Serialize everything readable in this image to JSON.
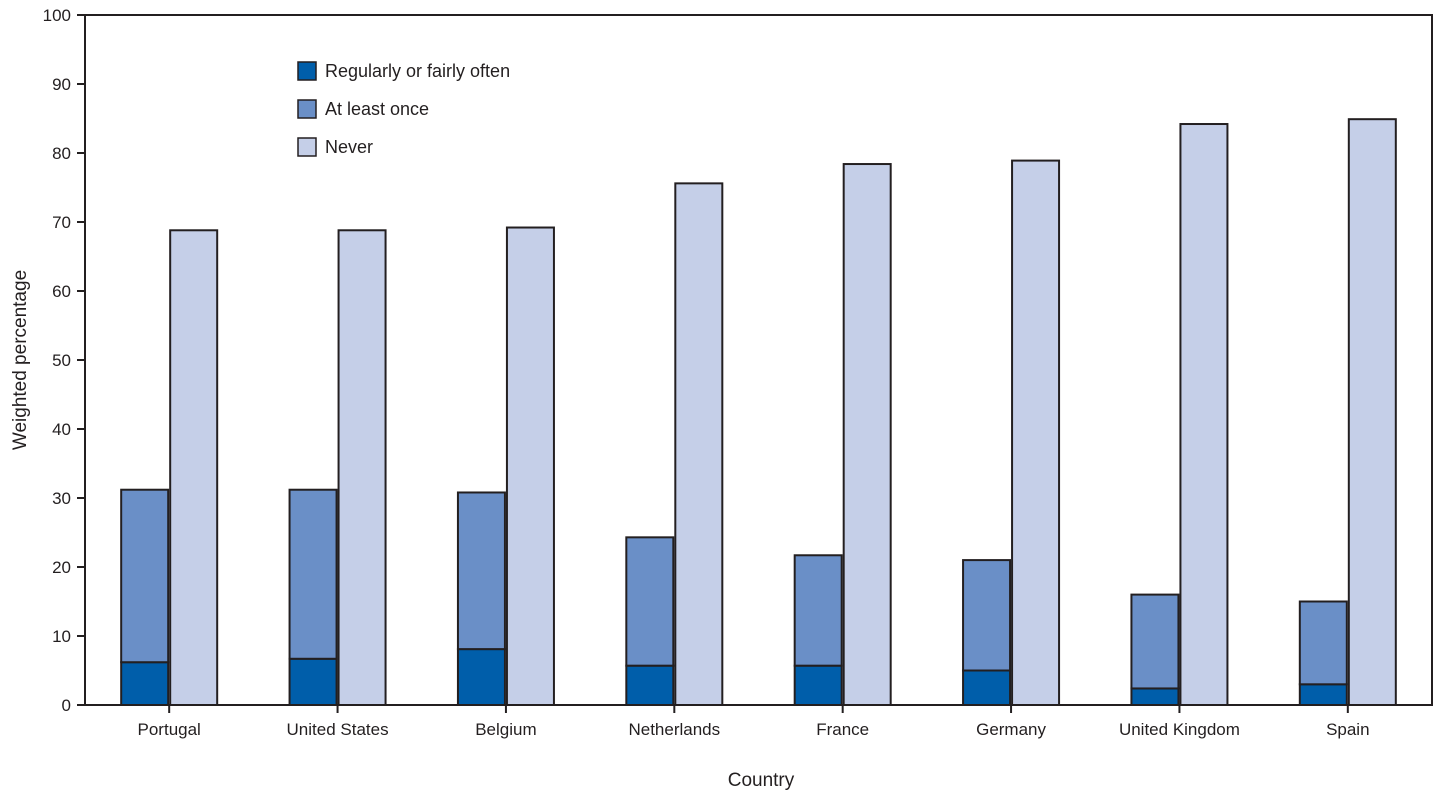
{
  "chart_data": {
    "type": "bar",
    "stacked_groups": true,
    "title": "",
    "xlabel": "Country",
    "ylabel": "Weighted percentage",
    "ylim": [
      0,
      100
    ],
    "yticks": [
      0,
      10,
      20,
      30,
      40,
      50,
      60,
      70,
      80,
      90,
      100
    ],
    "grid": false,
    "legend_position": "top-left",
    "categories": [
      "Portugal",
      "United States",
      "Belgium",
      "Netherlands",
      "France",
      "Germany",
      "United Kingdom",
      "Spain"
    ],
    "series": [
      {
        "name": "Regularly or fairly often",
        "color": "#005eaa",
        "stack": "ever",
        "values": [
          6.2,
          6.7,
          8.1,
          5.7,
          5.7,
          5.0,
          2.4,
          3.0
        ]
      },
      {
        "name": "At least once",
        "color": "#6a8fc7",
        "stack": "ever",
        "values": [
          25.0,
          24.5,
          22.7,
          18.6,
          16.0,
          16.0,
          13.6,
          12.0
        ]
      },
      {
        "name": "Never",
        "color": "#c5cfe8",
        "stack": "never",
        "values": [
          68.8,
          68.8,
          69.2,
          75.6,
          78.4,
          78.9,
          84.2,
          84.9
        ]
      }
    ]
  }
}
